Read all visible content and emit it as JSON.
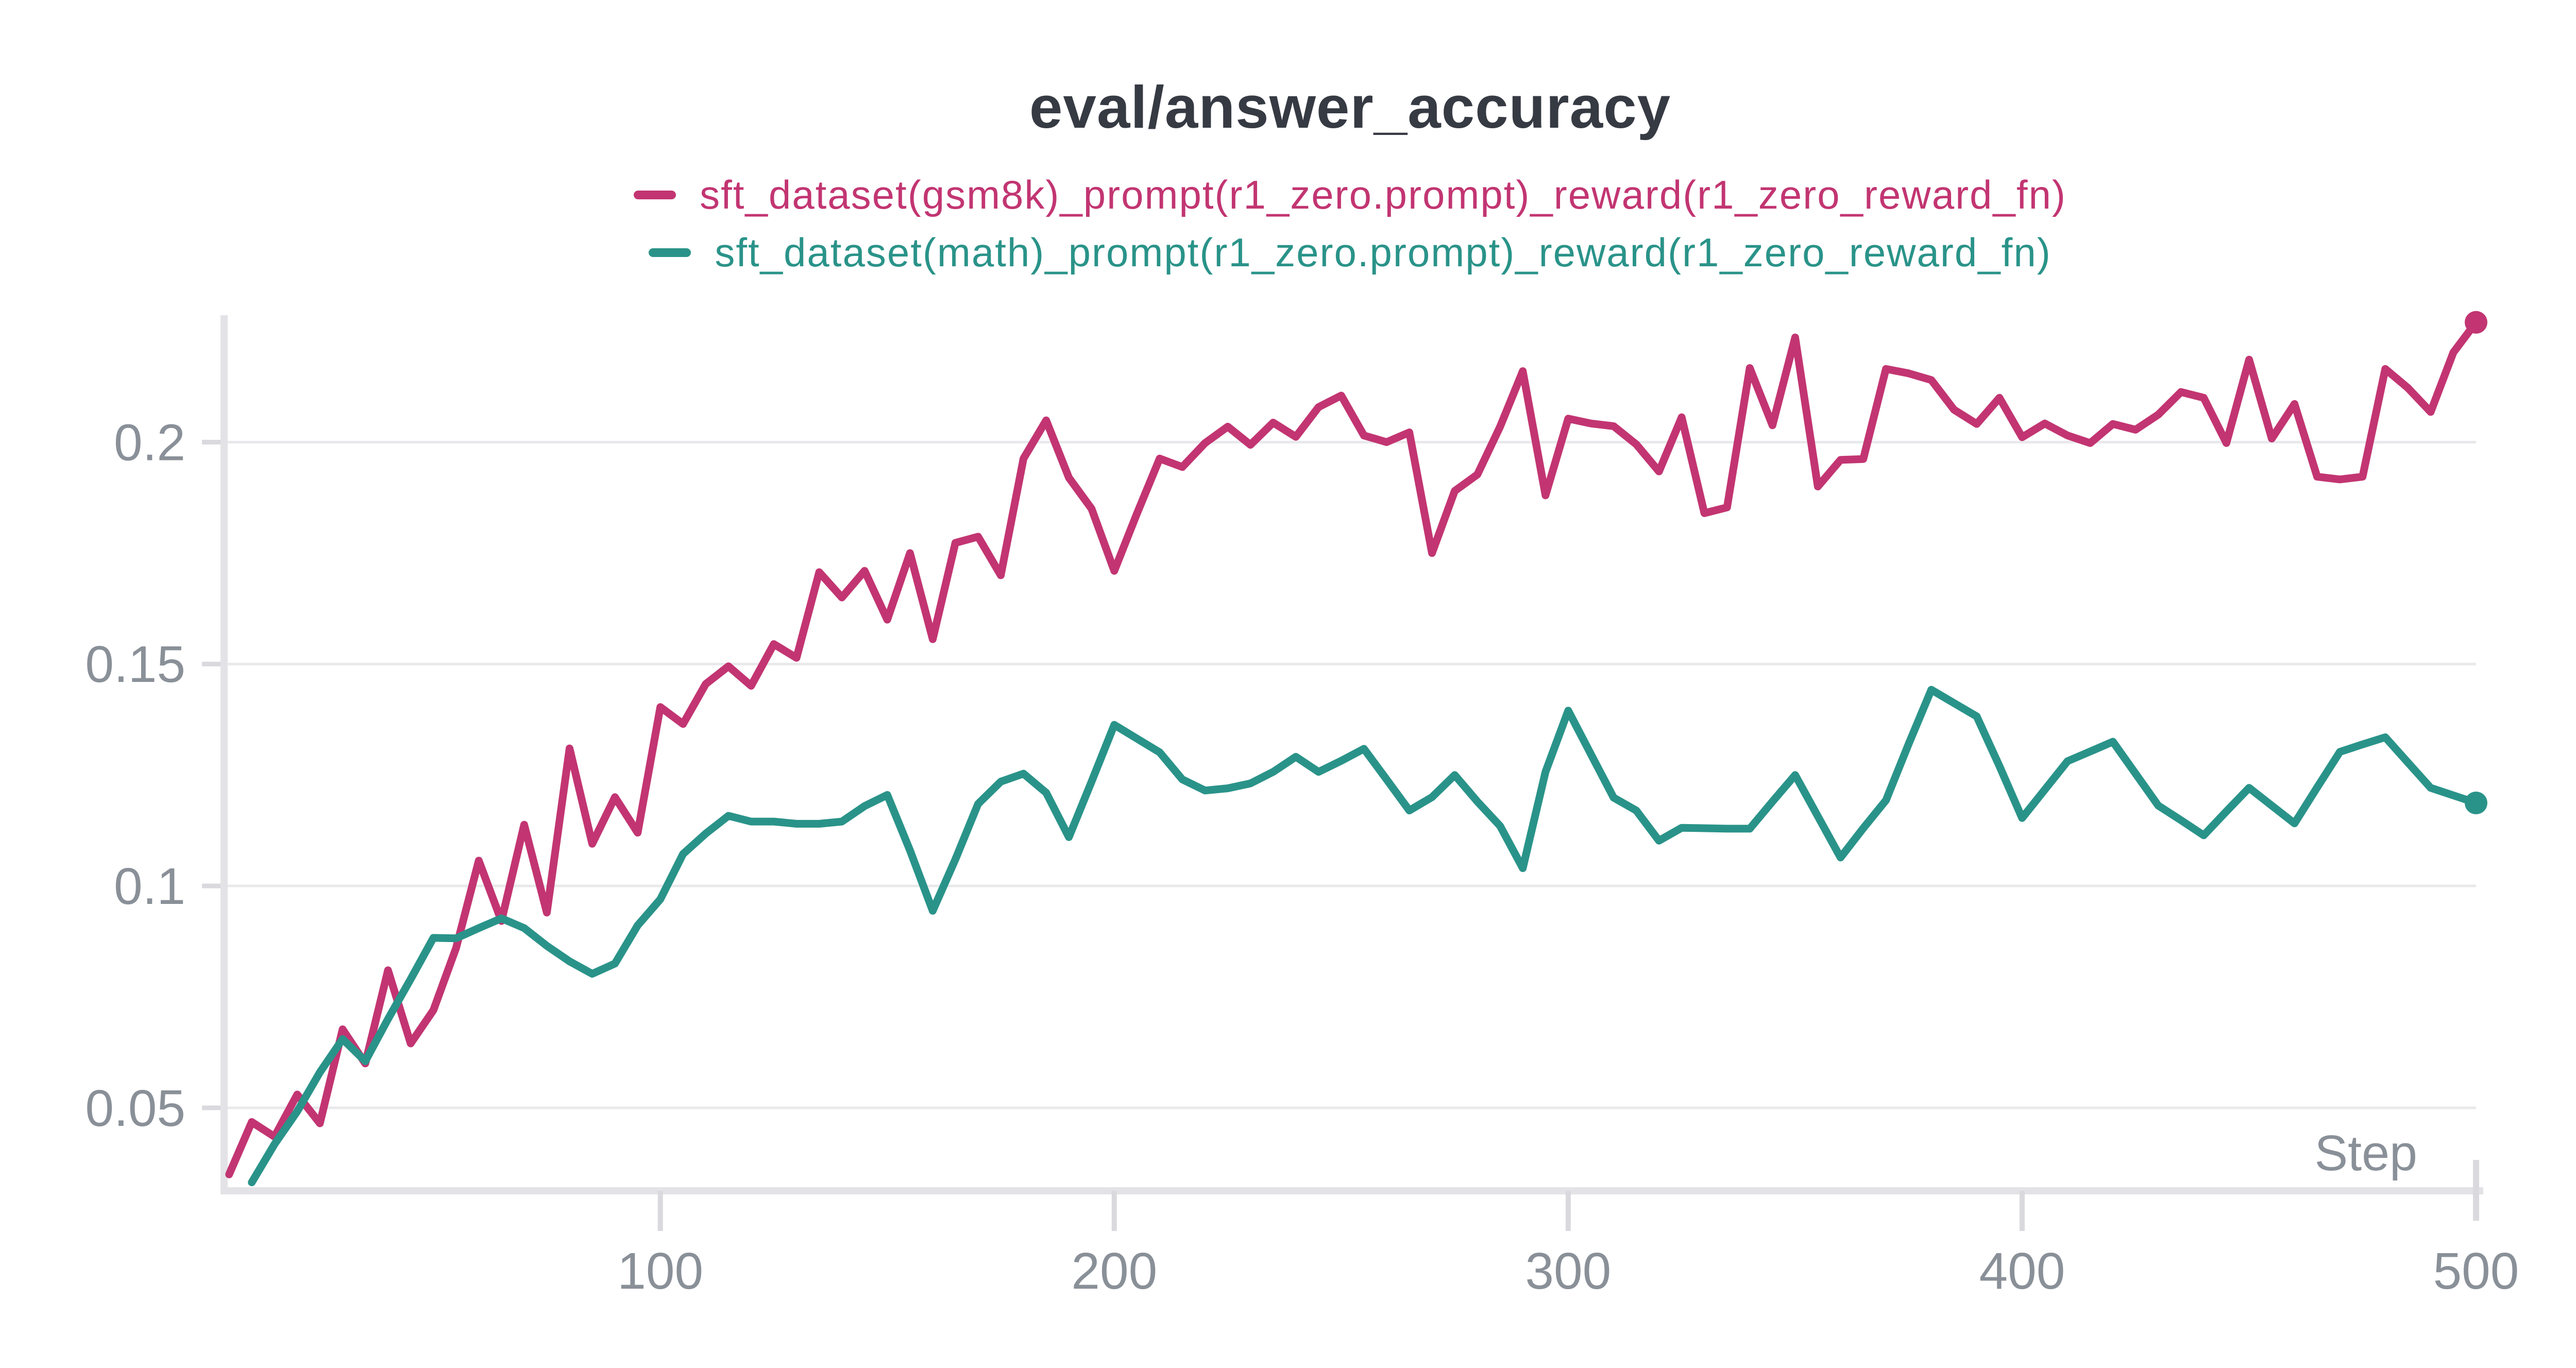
{
  "title": "eval/answer_accuracy",
  "legend": {
    "items": [
      {
        "label": "sft_dataset(gsm8k)_prompt(r1_zero.prompt)_reward(r1_zero_reward_fn)",
        "color": "#C23572"
      },
      {
        "label": "sft_dataset(math)_prompt(r1_zero.prompt)_reward(r1_zero_reward_fn)",
        "color": "#2A9389"
      }
    ]
  },
  "style": {
    "title_color": "#363A43",
    "axis_line_color": "#E3E3E7",
    "grid_line_color": "#E9E9EC",
    "tick_mark_color": "#D9D9DE",
    "tick_label_color": "#8A9098",
    "background": "#FFFFFF"
  },
  "chart_data": {
    "type": "line",
    "title": "eval/answer_accuracy",
    "xlabel": "Step",
    "ylabel": "",
    "grid": true,
    "legend_position": "top",
    "xlim": [
      3.9,
      500
    ],
    "ylim": [
      0.0313,
      0.2286
    ],
    "xticks": [
      {
        "value": 100,
        "label": "100"
      },
      {
        "value": 200,
        "label": "200"
      },
      {
        "value": 300,
        "label": "300"
      },
      {
        "value": 400,
        "label": "400"
      },
      {
        "value": 500,
        "label": "500"
      }
    ],
    "yticks": [
      {
        "value": 0.05,
        "label": "0.05"
      },
      {
        "value": 0.1,
        "label": "0.1"
      },
      {
        "value": 0.15,
        "label": "0.15"
      },
      {
        "value": 0.2,
        "label": "0.2"
      }
    ],
    "series": [
      {
        "name": "sft_dataset(gsm8k)_prompt(r1_zero.prompt)_reward(r1_zero_reward_fn)",
        "color": "#C23572",
        "endpoint_dot": true,
        "points": [
          [
            5,
            0.035
          ],
          [
            10,
            0.0468
          ],
          [
            15,
            0.0435
          ],
          [
            20,
            0.053
          ],
          [
            25,
            0.0465
          ],
          [
            30,
            0.0677
          ],
          [
            35,
            0.06
          ],
          [
            40,
            0.081
          ],
          [
            45,
            0.0645
          ],
          [
            50,
            0.072
          ],
          [
            55,
            0.086
          ],
          [
            60,
            0.1057
          ],
          [
            65,
            0.0921
          ],
          [
            70,
            0.1138
          ],
          [
            75,
            0.094
          ],
          [
            80,
            0.131
          ],
          [
            85,
            0.1095
          ],
          [
            90,
            0.12
          ],
          [
            95,
            0.112
          ],
          [
            100,
            0.1403
          ],
          [
            105,
            0.1365
          ],
          [
            110,
            0.1455
          ],
          [
            115,
            0.1495
          ],
          [
            120,
            0.1451
          ],
          [
            125,
            0.1545
          ],
          [
            130,
            0.1514
          ],
          [
            135,
            0.1707
          ],
          [
            140,
            0.165
          ],
          [
            145,
            0.171
          ],
          [
            150,
            0.16
          ],
          [
            155,
            0.175
          ],
          [
            160,
            0.1556
          ],
          [
            165,
            0.1773
          ],
          [
            170,
            0.1787
          ],
          [
            175,
            0.17
          ],
          [
            180,
            0.1963
          ],
          [
            185,
            0.2049
          ],
          [
            190,
            0.192
          ],
          [
            195,
            0.185
          ],
          [
            200,
            0.171
          ],
          [
            205,
            0.1839
          ],
          [
            210,
            0.1963
          ],
          [
            215,
            0.1944
          ],
          [
            220,
            0.1998
          ],
          [
            225,
            0.2035
          ],
          [
            230,
            0.1994
          ],
          [
            235,
            0.2044
          ],
          [
            240,
            0.2012
          ],
          [
            245,
            0.2079
          ],
          [
            250,
            0.2105
          ],
          [
            255,
            0.2015
          ],
          [
            260,
            0.2
          ],
          [
            265,
            0.2022
          ],
          [
            270,
            0.175
          ],
          [
            275,
            0.189
          ],
          [
            280,
            0.1927
          ],
          [
            285,
            0.2035
          ],
          [
            290,
            0.216
          ],
          [
            295,
            0.188
          ],
          [
            300,
            0.2053
          ],
          [
            305,
            0.2042
          ],
          [
            310,
            0.2036
          ],
          [
            315,
            0.1995
          ],
          [
            320,
            0.1934
          ],
          [
            325,
            0.2056
          ],
          [
            330,
            0.184
          ],
          [
            335,
            0.1853
          ],
          [
            340,
            0.2167
          ],
          [
            345,
            0.2038
          ],
          [
            350,
            0.2236
          ],
          [
            355,
            0.19
          ],
          [
            360,
            0.196
          ],
          [
            365,
            0.1962
          ],
          [
            370,
            0.2165
          ],
          [
            375,
            0.2155
          ],
          [
            380,
            0.214
          ],
          [
            385,
            0.2073
          ],
          [
            390,
            0.2041
          ],
          [
            395,
            0.21
          ],
          [
            400,
            0.2011
          ],
          [
            405,
            0.2042
          ],
          [
            410,
            0.2015
          ],
          [
            415,
            0.1998
          ],
          [
            420,
            0.2041
          ],
          [
            425,
            0.2028
          ],
          [
            430,
            0.2062
          ],
          [
            435,
            0.2113
          ],
          [
            440,
            0.21
          ],
          [
            445,
            0.1998
          ],
          [
            450,
            0.2186
          ],
          [
            455,
            0.2008
          ],
          [
            460,
            0.2086
          ],
          [
            465,
            0.1922
          ],
          [
            470,
            0.1916
          ],
          [
            475,
            0.1922
          ],
          [
            480,
            0.2165
          ],
          [
            485,
            0.2122
          ],
          [
            490,
            0.2068
          ],
          [
            495,
            0.2202
          ],
          [
            500,
            0.227
          ]
        ]
      },
      {
        "name": "sft_dataset(math)_prompt(r1_zero.prompt)_reward(r1_zero_reward_fn)",
        "color": "#2A9389",
        "endpoint_dot": true,
        "points": [
          [
            10,
            0.0332
          ],
          [
            15,
            0.0418
          ],
          [
            20,
            0.0492
          ],
          [
            25,
            0.058
          ],
          [
            30,
            0.0655
          ],
          [
            35,
            0.0605
          ],
          [
            40,
            0.07
          ],
          [
            45,
            0.079
          ],
          [
            50,
            0.0883
          ],
          [
            55,
            0.0882
          ],
          [
            60,
            0.0905
          ],
          [
            65,
            0.0927
          ],
          [
            70,
            0.0905
          ],
          [
            75,
            0.0865
          ],
          [
            80,
            0.083
          ],
          [
            85,
            0.0802
          ],
          [
            90,
            0.0825
          ],
          [
            95,
            0.0911
          ],
          [
            100,
            0.097
          ],
          [
            105,
            0.1072
          ],
          [
            110,
            0.1118
          ],
          [
            115,
            0.1158
          ],
          [
            120,
            0.1145
          ],
          [
            125,
            0.1145
          ],
          [
            130,
            0.114
          ],
          [
            135,
            0.114
          ],
          [
            140,
            0.1145
          ],
          [
            145,
            0.118
          ],
          [
            150,
            0.1205
          ],
          [
            155,
            0.108
          ],
          [
            160,
            0.0944
          ],
          [
            165,
            0.106
          ],
          [
            170,
            0.1185
          ],
          [
            175,
            0.1235
          ],
          [
            180,
            0.1253
          ],
          [
            185,
            0.121
          ],
          [
            190,
            0.111
          ],
          [
            195,
            0.1235
          ],
          [
            200,
            0.1363
          ],
          [
            205,
            0.1332
          ],
          [
            210,
            0.1301
          ],
          [
            215,
            0.124
          ],
          [
            220,
            0.1215
          ],
          [
            225,
            0.122
          ],
          [
            230,
            0.1231
          ],
          [
            235,
            0.1257
          ],
          [
            240,
            0.1291
          ],
          [
            245,
            0.1257
          ],
          [
            250,
            0.1282
          ],
          [
            255,
            0.1309
          ],
          [
            260,
            0.124
          ],
          [
            265,
            0.117
          ],
          [
            270,
            0.12
          ],
          [
            275,
            0.125
          ],
          [
            280,
            0.119
          ],
          [
            285,
            0.1135
          ],
          [
            290,
            0.104
          ],
          [
            295,
            0.1257
          ],
          [
            300,
            0.1395
          ],
          [
            305,
            0.1297
          ],
          [
            310,
            0.1199
          ],
          [
            315,
            0.117
          ],
          [
            320,
            0.1102
          ],
          [
            325,
            0.1131
          ],
          [
            330,
            0.113
          ],
          [
            335,
            0.1129
          ],
          [
            340,
            0.1129
          ],
          [
            345,
            0.119
          ],
          [
            350,
            0.125
          ],
          [
            355,
            0.1157
          ],
          [
            360,
            0.1064
          ],
          [
            365,
            0.113
          ],
          [
            370,
            0.1193
          ],
          [
            375,
            0.132
          ],
          [
            380,
            0.1442
          ],
          [
            385,
            0.1412
          ],
          [
            390,
            0.1382
          ],
          [
            395,
            0.127
          ],
          [
            400,
            0.1153
          ],
          [
            405,
            0.1217
          ],
          [
            410,
            0.1281
          ],
          [
            415,
            0.1303
          ],
          [
            420,
            0.1325
          ],
          [
            425,
            0.1253
          ],
          [
            430,
            0.1181
          ],
          [
            435,
            0.1148
          ],
          [
            440,
            0.1114
          ],
          [
            445,
            0.1168
          ],
          [
            450,
            0.1221
          ],
          [
            455,
            0.1181
          ],
          [
            460,
            0.1141
          ],
          [
            465,
            0.1222
          ],
          [
            470,
            0.1302
          ],
          [
            475,
            0.1319
          ],
          [
            480,
            0.1335
          ],
          [
            485,
            0.1278
          ],
          [
            490,
            0.1221
          ],
          [
            495,
            0.1204
          ],
          [
            500,
            0.1187
          ]
        ]
      }
    ]
  }
}
